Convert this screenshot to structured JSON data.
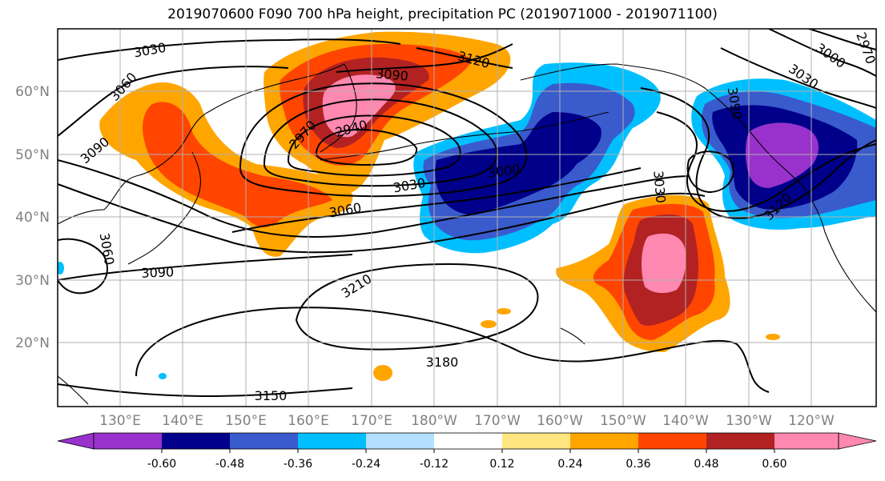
{
  "title": "2019070600 F090 700 hPa height, precipitation PC (2019071000 - 2019071100)",
  "map": {
    "lon_labels": [
      "130°E",
      "140°E",
      "150°E",
      "160°E",
      "170°E",
      "180°W",
      "170°W",
      "160°W",
      "150°W",
      "140°W",
      "130°W",
      "120°W"
    ],
    "lat_labels": [
      "60°N",
      "50°N",
      "40°N",
      "30°N",
      "20°N"
    ],
    "contour_labels": [
      "3030",
      "3060",
      "3090",
      "3090",
      "3120",
      "2970",
      "2940",
      "3000",
      "3030",
      "3060",
      "3090",
      "3210",
      "3180",
      "3150",
      "3060",
      "3030",
      "3000",
      "2970",
      "3030",
      "3120",
      "3090"
    ],
    "gridlines": true
  },
  "colorbar": {
    "ticks": [
      "-0.60",
      "-0.48",
      "-0.36",
      "-0.24",
      "-0.12",
      "0.12",
      "0.24",
      "0.36",
      "0.48",
      "0.60"
    ],
    "colors": [
      "#9932cc",
      "#00008b",
      "#3a5bcc",
      "#00bfff",
      "#b3e0ff",
      "#ffffff",
      "#ffe680",
      "#ffa500",
      "#ff4500",
      "#b22222",
      "#ff88b0"
    ],
    "extend": "both"
  }
}
